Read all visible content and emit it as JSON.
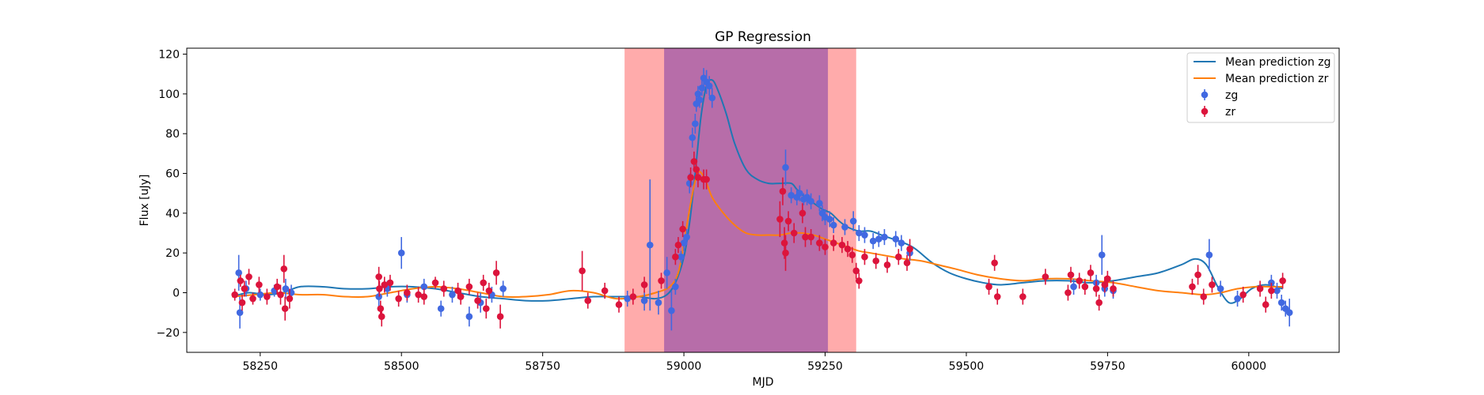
{
  "chart_data": {
    "type": "scatter",
    "title": "GP Regression",
    "xlabel": "MJD",
    "ylabel": "Flux [uJy]",
    "xlim": [
      58120,
      60160
    ],
    "ylim": [
      -30,
      123
    ],
    "xticks": [
      58250,
      58500,
      58750,
      59000,
      59250,
      59500,
      59750,
      60000
    ],
    "yticks": [
      -20,
      0,
      20,
      40,
      60,
      80,
      100,
      120
    ],
    "grid": false,
    "legend_position": "top-right",
    "shaded_regions": [
      {
        "x": [
          58895,
          59305
        ],
        "color": "#ff0000",
        "alpha": 0.33
      },
      {
        "x": [
          58965,
          59255
        ],
        "color": "#7b3ba8",
        "alpha": 0.55
      }
    ],
    "series": [
      {
        "name": "Mean prediction zg",
        "kind": "line",
        "color": "#1f77b4",
        "x": [
          58200,
          58230,
          58260,
          58290,
          58320,
          58360,
          58400,
          58440,
          58480,
          58520,
          58560,
          58600,
          58640,
          58680,
          58720,
          58760,
          58800,
          58840,
          58880,
          58920,
          58950,
          58970,
          58985,
          59000,
          59010,
          59020,
          59030,
          59040,
          59050,
          59060,
          59075,
          59090,
          59110,
          59130,
          59150,
          59170,
          59190,
          59200,
          59215,
          59230,
          59245,
          59260,
          59275,
          59290,
          59310,
          59330,
          59350,
          59370,
          59390,
          59410,
          59440,
          59470,
          59500,
          59530,
          59560,
          59600,
          59640,
          59680,
          59720,
          59760,
          59800,
          59840,
          59880,
          59905,
          59925,
          59945,
          59965,
          59985,
          60005,
          60030,
          60060
        ],
        "y": [
          -2,
          0,
          -1,
          0,
          3,
          3,
          2,
          2,
          3,
          3,
          2,
          0,
          -2,
          -3,
          -4,
          -4,
          -3,
          -2,
          -2,
          -2,
          -3,
          -1,
          5,
          18,
          35,
          60,
          88,
          104,
          107,
          102,
          90,
          75,
          62,
          57,
          55,
          55,
          55,
          52,
          48,
          45,
          42,
          40,
          36,
          33,
          31,
          31,
          29,
          27,
          25,
          22,
          15,
          10,
          7,
          5,
          4,
          5,
          6,
          6,
          5,
          6,
          8,
          10,
          14,
          17,
          14,
          3,
          -5,
          -3,
          2,
          4,
          2
        ]
      },
      {
        "name": "Mean prediction zr",
        "kind": "line",
        "color": "#ff7f0e",
        "x": [
          58200,
          58240,
          58280,
          58320,
          58360,
          58400,
          58440,
          58480,
          58520,
          58560,
          58600,
          58640,
          58680,
          58720,
          58760,
          58800,
          58840,
          58880,
          58920,
          58950,
          58975,
          58990,
          59000,
          59012,
          59024,
          59036,
          59050,
          59070,
          59090,
          59110,
          59130,
          59150,
          59170,
          59190,
          59210,
          59230,
          59250,
          59270,
          59290,
          59310,
          59330,
          59350,
          59370,
          59390,
          59420,
          59450,
          59480,
          59520,
          59560,
          59600,
          59640,
          59680,
          59720,
          59760,
          59800,
          59840,
          59880,
          59920,
          59950,
          59980,
          60010,
          60040,
          60060
        ],
        "y": [
          -2,
          -1,
          0,
          -1,
          -1,
          -2,
          -2,
          0,
          2,
          3,
          2,
          0,
          -2,
          -2,
          -1,
          1,
          0,
          -3,
          -2,
          0,
          3,
          10,
          25,
          45,
          60,
          58,
          48,
          40,
          34,
          30,
          29,
          29,
          29,
          30,
          30,
          29,
          27,
          25,
          23,
          21,
          20,
          19,
          18,
          17,
          16,
          14,
          12,
          9,
          7,
          6,
          7,
          7,
          6,
          5,
          3,
          1,
          0,
          -1,
          0,
          2,
          3,
          3,
          3
        ]
      },
      {
        "name": "zg",
        "kind": "errorbar",
        "color": "#4169e1",
        "points": [
          [
            58212,
            10,
            9
          ],
          [
            58214,
            -10,
            8
          ],
          [
            58225,
            2,
            4
          ],
          [
            58250,
            -1,
            3
          ],
          [
            58275,
            1,
            3
          ],
          [
            58295,
            2,
            5
          ],
          [
            58305,
            0,
            4
          ],
          [
            58460,
            -2,
            5
          ],
          [
            58475,
            2,
            4
          ],
          [
            58500,
            20,
            8
          ],
          [
            58510,
            -1,
            4
          ],
          [
            58540,
            3,
            4
          ],
          [
            58570,
            -8,
            4
          ],
          [
            58590,
            -1,
            4
          ],
          [
            58620,
            -12,
            5
          ],
          [
            58640,
            -5,
            5
          ],
          [
            58660,
            -1,
            4
          ],
          [
            58680,
            2,
            4
          ],
          [
            58900,
            -3,
            4
          ],
          [
            58930,
            -4,
            5
          ],
          [
            58940,
            24,
            33
          ],
          [
            58955,
            -5,
            6
          ],
          [
            58970,
            10,
            8
          ],
          [
            58978,
            -9,
            10
          ],
          [
            58985,
            3,
            4
          ],
          [
            58995,
            18,
            3
          ],
          [
            59000,
            25,
            4
          ],
          [
            59005,
            28,
            4
          ],
          [
            59010,
            55,
            5
          ],
          [
            59015,
            78,
            5
          ],
          [
            59020,
            85,
            5
          ],
          [
            59022,
            95,
            4
          ],
          [
            59025,
            100,
            4
          ],
          [
            59028,
            97,
            4
          ],
          [
            59032,
            103,
            4
          ],
          [
            59035,
            108,
            5
          ],
          [
            59040,
            106,
            6
          ],
          [
            59045,
            104,
            5
          ],
          [
            59050,
            98,
            5
          ],
          [
            59180,
            63,
            9
          ],
          [
            59190,
            49,
            4
          ],
          [
            59200,
            48,
            4
          ],
          [
            59205,
            50,
            4
          ],
          [
            59212,
            47,
            3
          ],
          [
            59218,
            48,
            4
          ],
          [
            59225,
            46,
            4
          ],
          [
            59240,
            45,
            4
          ],
          [
            59245,
            40,
            4
          ],
          [
            59250,
            38,
            4
          ],
          [
            59258,
            37,
            4
          ],
          [
            59265,
            34,
            4
          ],
          [
            59285,
            33,
            4
          ],
          [
            59300,
            36,
            5
          ],
          [
            59310,
            30,
            4
          ],
          [
            59320,
            29,
            4
          ],
          [
            59335,
            26,
            4
          ],
          [
            59345,
            27,
            4
          ],
          [
            59355,
            28,
            4
          ],
          [
            59375,
            27,
            4
          ],
          [
            59385,
            25,
            4
          ],
          [
            59400,
            20,
            4
          ],
          [
            59690,
            3,
            4
          ],
          [
            59730,
            5,
            4
          ],
          [
            59740,
            19,
            10
          ],
          [
            59745,
            2,
            4
          ],
          [
            59760,
            1,
            4
          ],
          [
            59930,
            19,
            8
          ],
          [
            59950,
            2,
            4
          ],
          [
            59980,
            -3,
            4
          ],
          [
            60040,
            5,
            4
          ],
          [
            60050,
            1,
            4
          ],
          [
            60058,
            -5,
            4
          ],
          [
            60065,
            -8,
            4
          ],
          [
            60072,
            -10,
            7
          ]
        ]
      },
      {
        "name": "zr",
        "kind": "errorbar",
        "color": "#dc143c",
        "points": [
          [
            58205,
            -1,
            3
          ],
          [
            58215,
            6,
            3
          ],
          [
            58218,
            -5,
            4
          ],
          [
            58222,
            2,
            4
          ],
          [
            58230,
            8,
            4
          ],
          [
            58237,
            -3,
            3
          ],
          [
            58248,
            4,
            4
          ],
          [
            58262,
            -2,
            4
          ],
          [
            58280,
            3,
            4
          ],
          [
            58286,
            -1,
            5
          ],
          [
            58292,
            12,
            7
          ],
          [
            58294,
            -8,
            6
          ],
          [
            58302,
            -3,
            5
          ],
          [
            58460,
            8,
            5
          ],
          [
            58461,
            2,
            4
          ],
          [
            58463,
            -8,
            4
          ],
          [
            58465,
            -12,
            5
          ],
          [
            58470,
            4,
            4
          ],
          [
            58480,
            5,
            4
          ],
          [
            58495,
            -3,
            4
          ],
          [
            58510,
            0,
            4
          ],
          [
            58530,
            -1,
            4
          ],
          [
            58540,
            -2,
            4
          ],
          [
            58560,
            5,
            3
          ],
          [
            58575,
            2,
            4
          ],
          [
            58600,
            1,
            4
          ],
          [
            58605,
            -2,
            4
          ],
          [
            58620,
            3,
            4
          ],
          [
            58635,
            -4,
            4
          ],
          [
            58645,
            5,
            4
          ],
          [
            58650,
            -8,
            5
          ],
          [
            58655,
            1,
            4
          ],
          [
            58668,
            10,
            6
          ],
          [
            58675,
            -12,
            6
          ],
          [
            58820,
            11,
            10
          ],
          [
            58830,
            -4,
            4
          ],
          [
            58860,
            1,
            4
          ],
          [
            58885,
            -6,
            4
          ],
          [
            58910,
            -2,
            4
          ],
          [
            58930,
            4,
            4
          ],
          [
            58960,
            6,
            4
          ],
          [
            58985,
            18,
            4
          ],
          [
            58990,
            24,
            4
          ],
          [
            58998,
            32,
            4
          ],
          [
            59012,
            58,
            5
          ],
          [
            59018,
            66,
            5
          ],
          [
            59022,
            62,
            5
          ],
          [
            59025,
            58,
            5
          ],
          [
            59035,
            57,
            5
          ],
          [
            59040,
            57,
            5
          ],
          [
            59170,
            37,
            9
          ],
          [
            59175,
            51,
            7
          ],
          [
            59178,
            25,
            8
          ],
          [
            59180,
            20,
            9
          ],
          [
            59185,
            36,
            5
          ],
          [
            59195,
            30,
            5
          ],
          [
            59210,
            40,
            5
          ],
          [
            59215,
            28,
            5
          ],
          [
            59225,
            28,
            4
          ],
          [
            59240,
            25,
            4
          ],
          [
            59250,
            23,
            4
          ],
          [
            59265,
            25,
            4
          ],
          [
            59280,
            24,
            4
          ],
          [
            59290,
            22,
            4
          ],
          [
            59298,
            19,
            4
          ],
          [
            59305,
            11,
            4
          ],
          [
            59310,
            6,
            4
          ],
          [
            59320,
            18,
            4
          ],
          [
            59340,
            16,
            4
          ],
          [
            59360,
            14,
            4
          ],
          [
            59380,
            18,
            4
          ],
          [
            59395,
            15,
            4
          ],
          [
            59400,
            22,
            5
          ],
          [
            59540,
            3,
            4
          ],
          [
            59550,
            15,
            4
          ],
          [
            59555,
            -2,
            4
          ],
          [
            59600,
            -2,
            4
          ],
          [
            59640,
            8,
            4
          ],
          [
            59680,
            0,
            4
          ],
          [
            59685,
            9,
            4
          ],
          [
            59700,
            6,
            4
          ],
          [
            59710,
            3,
            4
          ],
          [
            59720,
            10,
            4
          ],
          [
            59730,
            2,
            4
          ],
          [
            59735,
            -5,
            4
          ],
          [
            59745,
            4,
            4
          ],
          [
            59750,
            7,
            4
          ],
          [
            59760,
            2,
            4
          ],
          [
            59900,
            3,
            4
          ],
          [
            59910,
            9,
            5
          ],
          [
            59920,
            -2,
            4
          ],
          [
            59935,
            4,
            4
          ],
          [
            59990,
            -1,
            4
          ],
          [
            60020,
            2,
            4
          ],
          [
            60030,
            -6,
            4
          ],
          [
            60040,
            1,
            4
          ],
          [
            60060,
            6,
            4
          ]
        ]
      }
    ]
  }
}
